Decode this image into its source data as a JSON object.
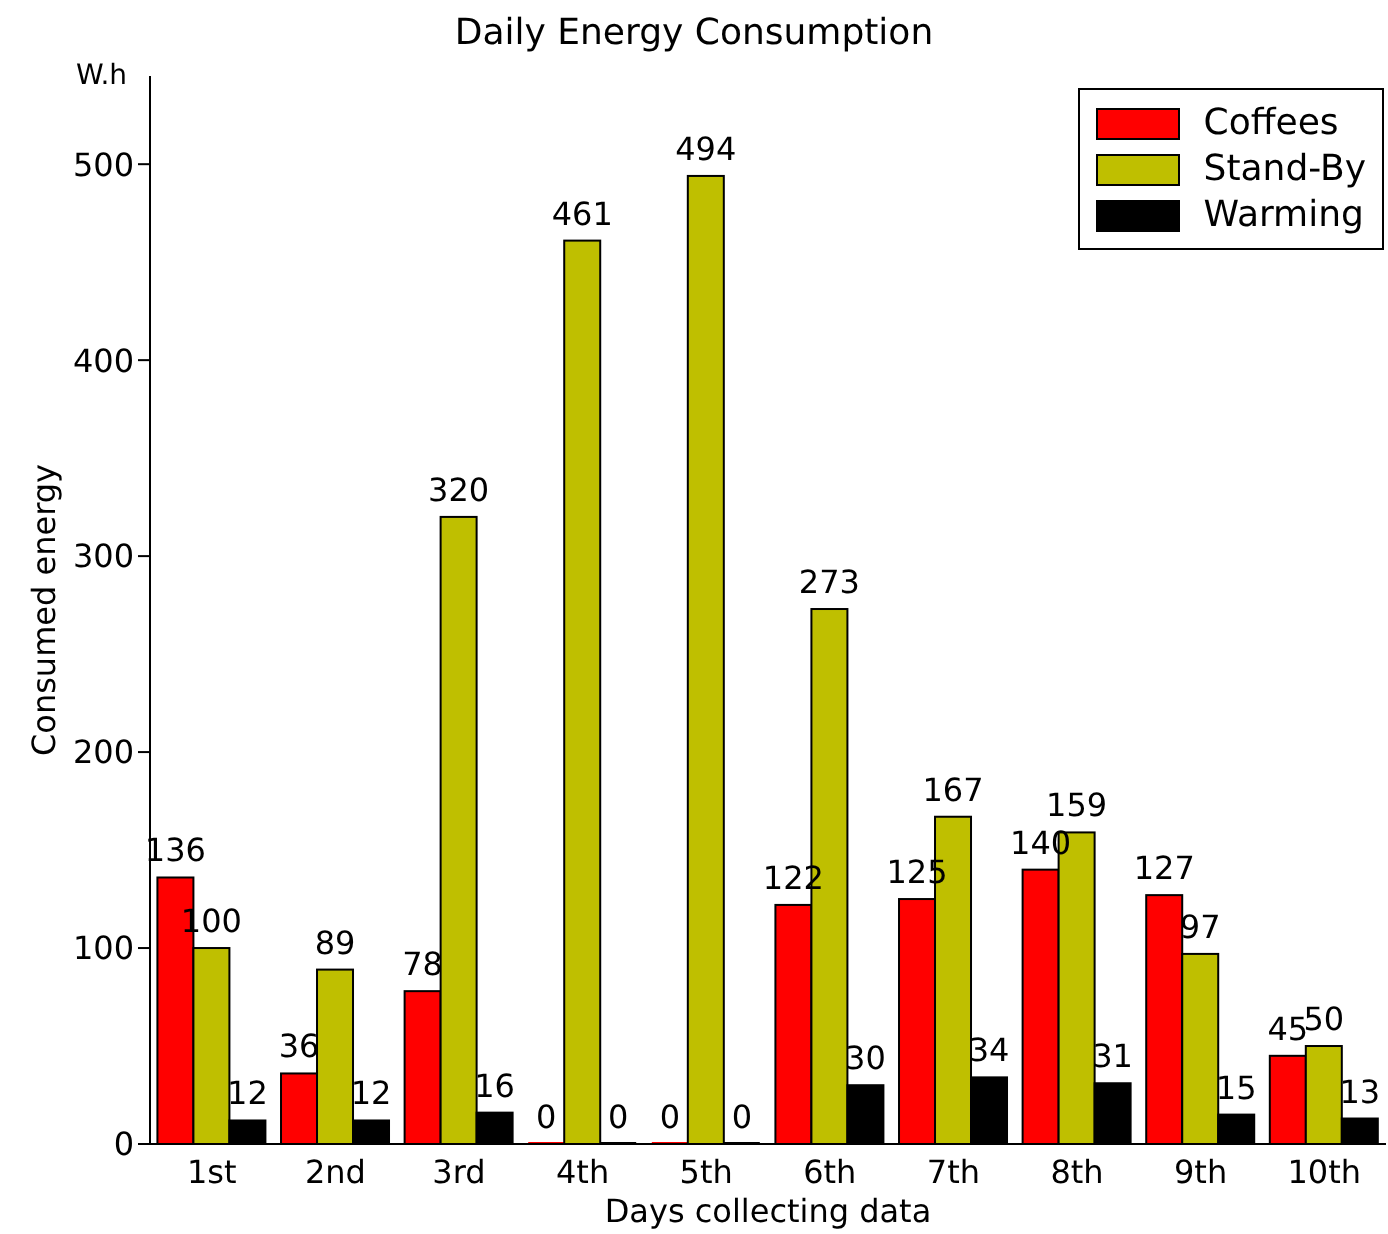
{
  "chart_data": {
    "type": "bar",
    "title": "Daily Energy Consumption",
    "xlabel": "Days collecting data",
    "ylabel": "Consumed energy",
    "annotations": [
      "W.h"
    ],
    "categories": [
      "1st",
      "2nd",
      "3rd",
      "4th",
      "5th",
      "6th",
      "7th",
      "8th",
      "9th",
      "10th"
    ],
    "series": [
      {
        "name": "Coffees",
        "color": "#ff0000",
        "values": [
          136,
          36,
          78,
          0,
          0,
          122,
          125,
          140,
          127,
          45
        ]
      },
      {
        "name": "Stand-By",
        "color": "#bfbf00",
        "values": [
          100,
          89,
          320,
          461,
          494,
          273,
          167,
          159,
          97,
          50
        ]
      },
      {
        "name": "Warming",
        "color": "#000000",
        "values": [
          12,
          12,
          16,
          0,
          0,
          30,
          34,
          31,
          15,
          13
        ]
      }
    ],
    "ylim": [
      0,
      545
    ],
    "yticks": [
      0,
      100,
      200,
      300,
      400,
      500
    ],
    "grid": false,
    "legend": "top right",
    "data_labels": true
  }
}
